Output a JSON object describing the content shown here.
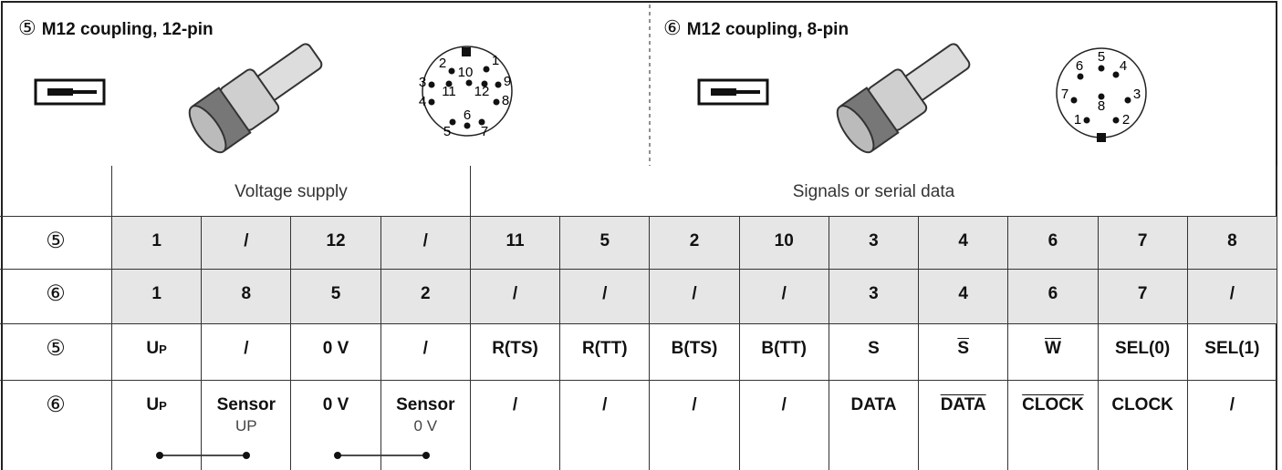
{
  "couplings": [
    {
      "label": "⑤",
      "title": "M12 coupling, 12-pin",
      "pins": [
        "1",
        "2",
        "3",
        "4",
        "5",
        "6",
        "7",
        "8",
        "9",
        "10",
        "11",
        "12"
      ]
    },
    {
      "label": "⑥",
      "title": "M12 coupling, 8-pin",
      "pins": [
        "1",
        "2",
        "3",
        "4",
        "5",
        "6",
        "7",
        "8"
      ]
    }
  ],
  "table": {
    "groups": [
      "Voltage supply",
      "Signals or serial data"
    ],
    "rows": [
      {
        "label": "⑤",
        "cells": [
          "1",
          "/",
          "12",
          "/",
          "11",
          "5",
          "2",
          "10",
          "3",
          "4",
          "6",
          "7",
          "8"
        ]
      },
      {
        "label": "⑥",
        "cells": [
          "1",
          "8",
          "5",
          "2",
          "/",
          "/",
          "/",
          "/",
          "3",
          "4",
          "6",
          "7",
          "/"
        ]
      },
      {
        "label": "⑤",
        "cells": [
          {
            "text": "U",
            "sub": "P"
          },
          "/",
          "0 V",
          "/",
          "R(TS)",
          "R(TT)",
          "B(TS)",
          "B(TT)",
          "S",
          {
            "text": "S",
            "overline": true
          },
          {
            "text": "W",
            "overline": true
          },
          "SEL(0)",
          "SEL(1)"
        ]
      },
      {
        "label": "⑥",
        "cells": [
          {
            "text": "U",
            "sub": "P"
          },
          {
            "text": "Sensor",
            "note": "UP"
          },
          "0 V",
          {
            "text": "Sensor",
            "note": "0 V"
          },
          "/",
          "/",
          "/",
          "/",
          "DATA",
          {
            "text": "DATA",
            "overline": true
          },
          {
            "text": "CLOCK",
            "overline": true
          },
          "CLOCK",
          "/"
        ]
      }
    ]
  }
}
